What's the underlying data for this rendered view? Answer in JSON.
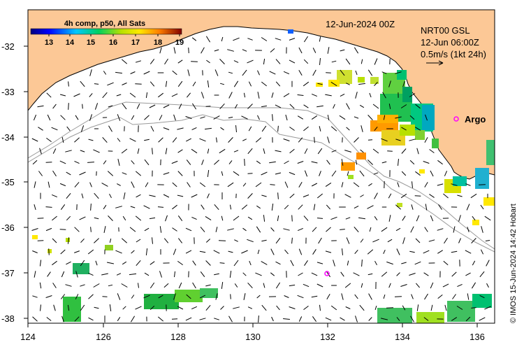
{
  "map": {
    "colorbar_title": "4h comp, p50, All Sats",
    "colorbar_ticks": [
      "13",
      "14",
      "15",
      "16",
      "17",
      "18",
      "19"
    ],
    "date_label": "12-Jun-2024 00Z",
    "product_label": "NRT00 GSL",
    "current_time_label": "12-Jun 06:00Z",
    "scale_label": "0.5m/s (1kt 24h)",
    "argo_label": "Argo",
    "credit": "© IMOS 15-Jun-2024 14:42 Hobart",
    "x_ticks": [
      "124",
      "126",
      "128",
      "130",
      "132",
      "134",
      "136"
    ],
    "y_ticks": [
      "-32",
      "-33",
      "-34",
      "-35",
      "-36",
      "-37",
      "-38"
    ],
    "colors": {
      "land": "#fcc896",
      "coast": "#000000",
      "bathy": "#9a9a9a",
      "argo": "#ff00ff"
    }
  }
}
